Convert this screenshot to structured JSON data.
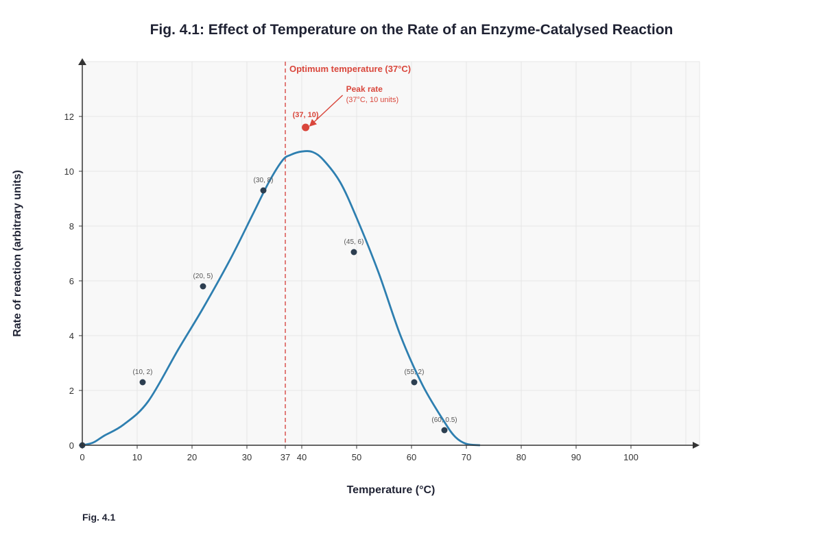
{
  "caption": "Fig. 4.1",
  "colors": {
    "curve": "#2e7fb0",
    "point": "#2c3e50",
    "accent": "#d9463b",
    "optimum_line": "#d9534f",
    "grid": "#e6e6e6",
    "plot_bg": "#f8f8f8",
    "axis": "#333333"
  },
  "chart_data": {
    "type": "line",
    "title": "Fig. 4.1: Effect of Temperature on the Rate of an Enzyme-Catalysed Reaction",
    "xlabel": "Temperature (°C)",
    "ylabel": "Rate of reaction (arbitrary units)",
    "xlim": [
      0,
      112
    ],
    "ylim": [
      0,
      12
    ],
    "x_ticks": [
      0,
      10,
      20,
      30,
      37,
      40,
      50,
      60,
      70,
      80,
      90,
      100
    ],
    "y_ticks": [
      0,
      2,
      4,
      6,
      8,
      10,
      12
    ],
    "grid": true,
    "legend": "none",
    "series": [
      {
        "type": "line",
        "x": [
          0,
          2,
          4,
          7.5,
          12,
          17.5,
          22,
          27,
          31,
          34,
          36.5,
          38,
          40,
          42,
          44,
          47,
          50,
          54,
          58,
          62,
          66,
          68,
          70,
          72.5
        ],
        "y": [
          0,
          0.1,
          0.35,
          0.75,
          1.6,
          3.5,
          5.0,
          6.8,
          8.4,
          9.6,
          10.4,
          10.6,
          10.72,
          10.7,
          10.4,
          9.6,
          8.3,
          6.3,
          4.0,
          2.2,
          0.85,
          0.3,
          0.05,
          0
        ]
      },
      {
        "type": "scatter",
        "points": [
          {
            "x": 0,
            "y": 0,
            "label": ""
          },
          {
            "x": 11,
            "y": 2.3,
            "label": "(10, 2)"
          },
          {
            "x": 22,
            "y": 5.8,
            "label": "(20, 5)"
          },
          {
            "x": 33,
            "y": 9.3,
            "label": "(30, 8)"
          },
          {
            "x": 49.5,
            "y": 7.05,
            "label": "(45, 6)"
          },
          {
            "x": 60.5,
            "y": 2.3,
            "label": "(55, 2)"
          },
          {
            "x": 66,
            "y": 0.55,
            "label": "(60, 0.5)"
          }
        ]
      }
    ],
    "highlight_point": {
      "x": 40.7,
      "y": 11.6,
      "label": "(37, 10)"
    },
    "optimum_line": {
      "x": 37,
      "label": "Optimum temperature (37°C)"
    },
    "annotation": {
      "title": "Peak rate",
      "subtitle": "(37°C, 10 units)"
    }
  }
}
